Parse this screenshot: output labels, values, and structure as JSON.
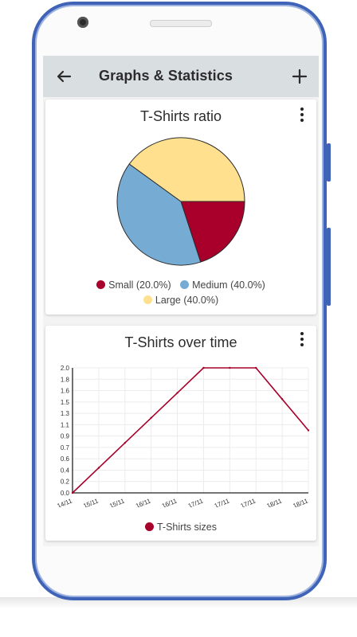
{
  "app": {
    "title": "Graphs & Statistics"
  },
  "icons": {
    "back": "arrow-left-icon",
    "add": "plus-icon",
    "menu": "more-vert-icon"
  },
  "colors": {
    "appbar": "#d9dee0",
    "small": "#a8002a",
    "medium": "#76acd4",
    "large": "#ffe08f",
    "line": "#a8002a",
    "phone_frame": "#3f63b6"
  },
  "pie_card": {
    "title": "T-Shirts ratio",
    "legend": [
      {
        "label": "Small (20.0%)",
        "color": "#a8002a"
      },
      {
        "label": "Medium (40.0%)",
        "color": "#76acd4"
      },
      {
        "label": "Large (40.0%)",
        "color": "#ffe08f"
      }
    ]
  },
  "line_card": {
    "title": "T-Shirts over time",
    "legend": [
      {
        "label": "T-Shirts sizes",
        "color": "#a8002a"
      }
    ]
  },
  "chart_data": [
    {
      "type": "pie",
      "title": "T-Shirts ratio",
      "categories": [
        "Small",
        "Medium",
        "Large"
      ],
      "values": [
        20.0,
        40.0,
        40.0
      ],
      "colors": [
        "#a8002a",
        "#76acd4",
        "#ffe08f"
      ],
      "legend_position": "bottom"
    },
    {
      "type": "line",
      "title": "T-Shirts over time",
      "x": [
        "14/11",
        "15/11",
        "15/11",
        "16/11",
        "16/11",
        "17/11",
        "17/11",
        "17/11",
        "18/11",
        "18/11"
      ],
      "series": [
        {
          "name": "T-Shirts sizes",
          "values": [
            0.0,
            0.4,
            0.8,
            1.2,
            1.6,
            2.0,
            2.0,
            2.0,
            1.5,
            1.0
          ],
          "color": "#a8002a"
        }
      ],
      "yticks": [
        "0.0",
        "0.2",
        "0.4",
        "0.6",
        "0.7",
        "0.9",
        "1.1",
        "1.3",
        "1.5",
        "1.6",
        "1.8",
        "2.0"
      ],
      "ylim": [
        0,
        2.0
      ],
      "grid": true,
      "legend_position": "bottom"
    }
  ]
}
